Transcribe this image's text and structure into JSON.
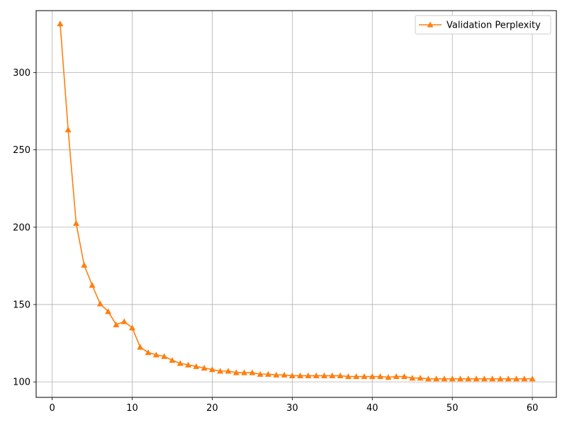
{
  "chart_data": {
    "type": "line",
    "title": "",
    "xlabel": "",
    "ylabel": "",
    "xlim": [
      -2,
      63
    ],
    "ylim": [
      90,
      340
    ],
    "x_ticks": [
      0,
      10,
      20,
      30,
      40,
      50,
      60
    ],
    "y_ticks": [
      100,
      150,
      200,
      250,
      300
    ],
    "grid": true,
    "legend_position": "top-right",
    "series": [
      {
        "name": "Validation Perplexity",
        "color": "#ff7f0e",
        "marker": "triangle-up",
        "x": [
          1,
          2,
          3,
          4,
          5,
          6,
          7,
          8,
          9,
          10,
          11,
          12,
          13,
          14,
          15,
          16,
          17,
          18,
          19,
          20,
          21,
          22,
          23,
          24,
          25,
          26,
          27,
          28,
          29,
          30,
          31,
          32,
          33,
          34,
          35,
          36,
          37,
          38,
          39,
          40,
          41,
          42,
          43,
          44,
          45,
          46,
          47,
          48,
          49,
          50,
          51,
          52,
          53,
          54,
          55,
          56,
          57,
          58,
          59,
          60
        ],
        "y": [
          331.5,
          263,
          202.5,
          175.5,
          162.5,
          150.5,
          145.5,
          137,
          139,
          135,
          122.5,
          119,
          117.5,
          116.5,
          114,
          112,
          111,
          110,
          109,
          108,
          107,
          107,
          106,
          106,
          106,
          105,
          105,
          104.5,
          104.5,
          104,
          104,
          104,
          104,
          104,
          104,
          104,
          103.5,
          103.5,
          103.5,
          103.5,
          103.5,
          103,
          103.5,
          103.5,
          102.5,
          102.5,
          102,
          102,
          102,
          102,
          102,
          102,
          102,
          102,
          102,
          102,
          102,
          102,
          102,
          102
        ]
      }
    ]
  }
}
